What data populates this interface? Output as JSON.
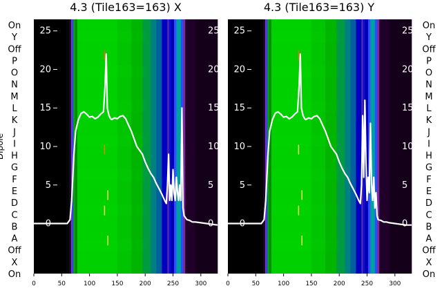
{
  "chart_data": [
    {
      "type": "heatmap",
      "title": "4.3 (Tile163=163) X",
      "ylabel": "Dipole",
      "xlim": [
        0,
        330
      ],
      "xticks": [
        0,
        50,
        100,
        150,
        200,
        250,
        300
      ],
      "dipole_labels": [
        "On",
        "Y",
        "Off",
        "P",
        "O",
        "N",
        "M",
        "L",
        "K",
        "J",
        "I",
        "H",
        "G",
        "F",
        "E",
        "D",
        "C",
        "B",
        "A",
        "Off",
        "X",
        "On"
      ],
      "overlay": {
        "type": "line",
        "ylim": [
          -6.5,
          26.5
        ],
        "yticks": [
          0,
          5,
          10,
          15,
          20,
          25
        ],
        "x": [
          0,
          60,
          65,
          68,
          70,
          72,
          75,
          80,
          85,
          90,
          95,
          100,
          105,
          110,
          115,
          120,
          125,
          128,
          130,
          132,
          135,
          138,
          140,
          145,
          150,
          155,
          160,
          165,
          170,
          175,
          180,
          185,
          190,
          195,
          200,
          205,
          210,
          215,
          220,
          225,
          230,
          235,
          238,
          240,
          242,
          244,
          246,
          248,
          250,
          252,
          254,
          256,
          258,
          260,
          262,
          264,
          266,
          268,
          270,
          275,
          280,
          285,
          290,
          300,
          310,
          320,
          330
        ],
        "y": [
          0,
          0,
          0.5,
          3,
          6,
          9,
          12,
          13.5,
          14.3,
          14.5,
          14.2,
          13.8,
          13.9,
          13.6,
          13.8,
          14.2,
          14.5,
          18,
          22,
          15,
          14,
          13.6,
          13.5,
          13.7,
          13.6,
          13.9,
          14,
          13.6,
          12.8,
          12,
          11,
          10,
          9.5,
          9,
          8,
          7.2,
          6.5,
          6,
          5.2,
          4.5,
          3.8,
          3,
          2.6,
          5,
          9,
          3,
          5,
          3,
          7,
          4,
          3,
          6,
          4,
          3,
          5,
          3,
          15,
          2,
          1,
          0.5,
          0.4,
          0.2,
          0.2,
          0.1,
          0,
          -0.1,
          -0.2
        ],
        "color": "#ffffff"
      }
    },
    {
      "type": "heatmap",
      "title": "4.3 (Tile163=163) Y",
      "ylabel": "",
      "xlim": [
        0,
        330
      ],
      "xticks": [
        0,
        50,
        100,
        150,
        200,
        250,
        300
      ],
      "dipole_labels": [
        "On",
        "Y",
        "Off",
        "P",
        "O",
        "N",
        "M",
        "L",
        "K",
        "J",
        "I",
        "H",
        "G",
        "F",
        "E",
        "D",
        "C",
        "B",
        "A",
        "Off",
        "X",
        "On"
      ],
      "overlay": {
        "type": "line",
        "ylim": [
          -6.5,
          26.5
        ],
        "yticks": [
          0,
          5,
          10,
          15,
          20,
          25
        ],
        "x": [
          0,
          60,
          65,
          68,
          70,
          72,
          75,
          80,
          85,
          90,
          95,
          100,
          105,
          110,
          115,
          120,
          125,
          128,
          130,
          132,
          135,
          138,
          140,
          145,
          150,
          155,
          160,
          165,
          170,
          175,
          180,
          185,
          190,
          195,
          200,
          205,
          210,
          215,
          220,
          225,
          230,
          235,
          238,
          240,
          242,
          244,
          246,
          248,
          250,
          252,
          254,
          256,
          258,
          260,
          262,
          264,
          266,
          268,
          270,
          275,
          280,
          285,
          290,
          300,
          310,
          320,
          330
        ],
        "y": [
          0,
          0,
          0.5,
          3,
          6,
          9,
          12,
          13.5,
          14.3,
          14.5,
          14.2,
          13.8,
          13.9,
          13.6,
          13.8,
          14.2,
          14.5,
          18,
          22,
          15,
          14,
          13.6,
          13.5,
          13.7,
          13.6,
          13.9,
          14,
          13.6,
          12.8,
          12,
          11,
          10,
          9.5,
          9,
          8,
          7.2,
          6.5,
          6,
          5.2,
          4.5,
          3.8,
          3,
          2.6,
          5,
          14,
          6,
          16,
          8,
          3,
          6,
          4,
          13,
          5,
          3,
          6,
          2,
          4,
          1,
          0.5,
          0.4,
          0.2,
          0.2,
          0.1,
          0,
          -0.1,
          -0.2,
          -0.2
        ],
        "color": "#ffffff"
      }
    }
  ],
  "colors": {
    "background": "#000000",
    "band_green": "#00d000",
    "band_blue": "#0000c8",
    "band_purple": "#6a2a8a",
    "line": "#ffffff"
  }
}
